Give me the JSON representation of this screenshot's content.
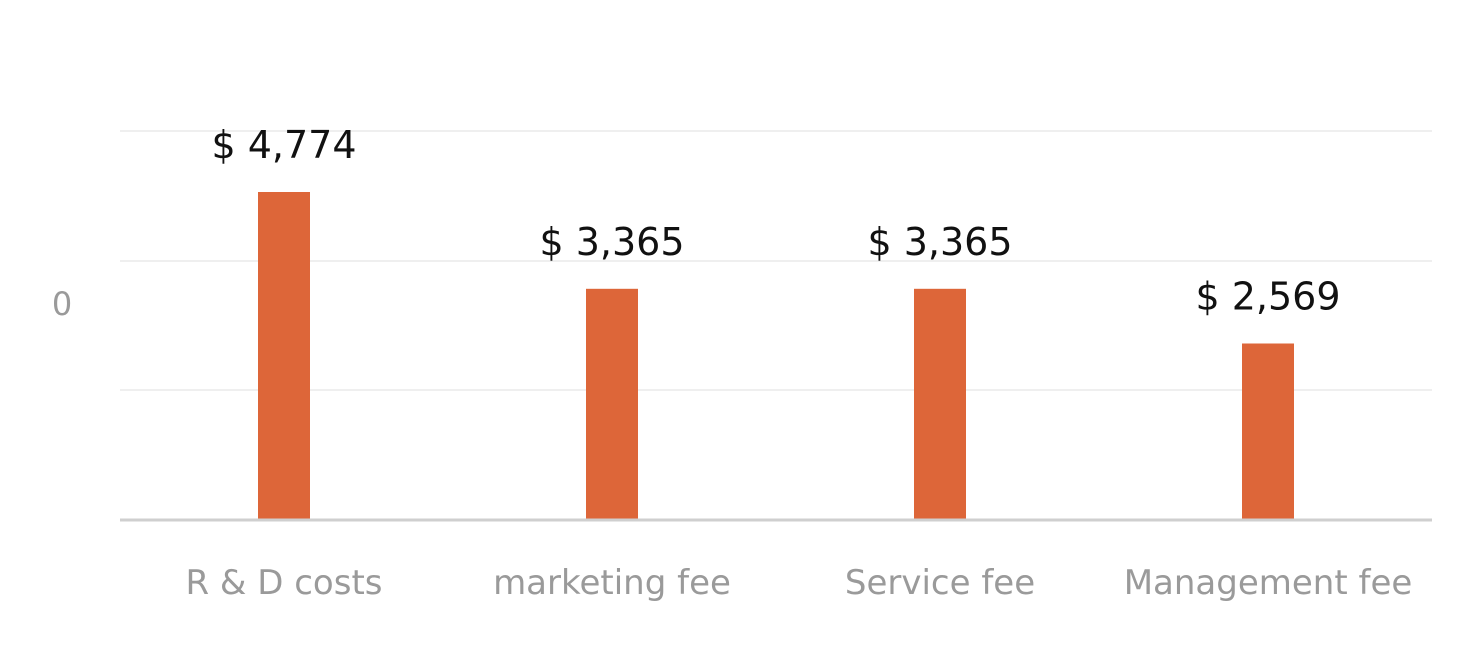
{
  "chart_data": {
    "type": "bar",
    "categories": [
      "R & D costs",
      "marketing fee",
      "Service fee",
      "Management fee"
    ],
    "values": [
      4774,
      3365,
      3365,
      2569
    ],
    "data_labels": [
      "$ 4,774",
      "$ 3,365",
      "$ 3,365",
      "$ 2,569"
    ],
    "y_tick_labels": [
      "0"
    ],
    "title": "",
    "xlabel": "",
    "ylabel": "",
    "grid": true,
    "legend": "none",
    "colors": {
      "bar": "#dd6639",
      "gridline": "#efefef",
      "axis": "#cfcfcf",
      "label": "#9a9a9a",
      "value_label": "#111111"
    }
  }
}
